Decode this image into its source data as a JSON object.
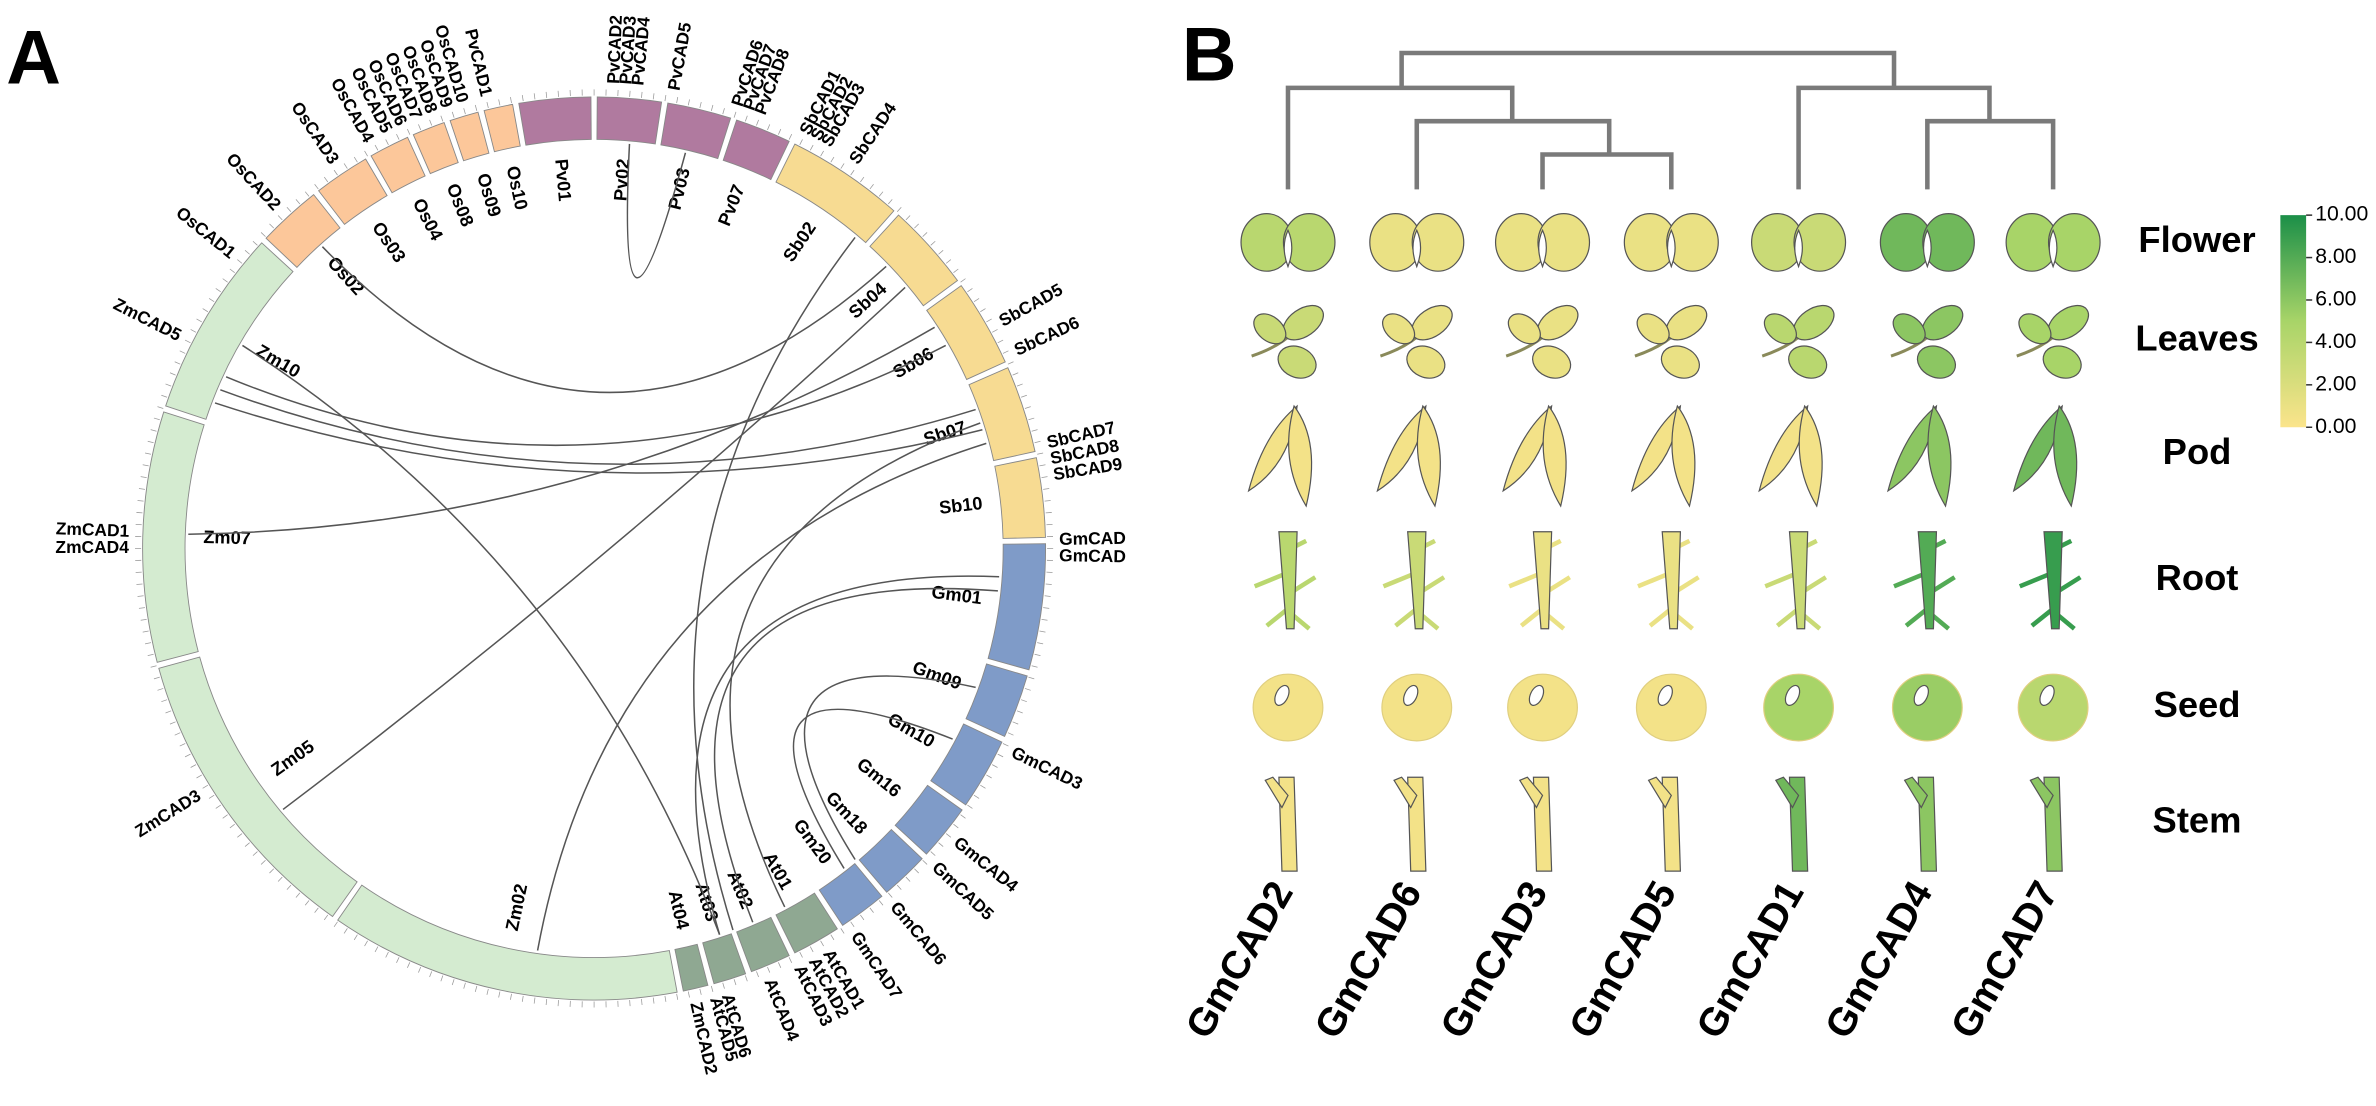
{
  "chart_data": [
    {
      "type": "circos",
      "panel_label": "A",
      "chromosomes": [
        "Pv01",
        "Pv02",
        "Pv03",
        "Pv07",
        "Sb02",
        "Sb04",
        "Sb06",
        "Sb07",
        "Sb10",
        "Gm01",
        "Gm09",
        "Gm10",
        "Gm16",
        "Gm18",
        "Gm20",
        "At01",
        "At02",
        "At03",
        "At04",
        "Zm02",
        "Zm05",
        "Zm07",
        "Zm10",
        "Os02",
        "Os03",
        "Os04",
        "Os08",
        "Os09",
        "Os10"
      ],
      "colors": [
        "#b07a9f",
        "#b07a9f",
        "#b07a9f",
        "#b07a9f",
        "#f7db92",
        "#f7db92",
        "#f7db92",
        "#f7db92",
        "#f7db92",
        "#7f9bc8",
        "#7f9bc8",
        "#7f9bc8",
        "#7f9bc8",
        "#7f9bc8",
        "#7f9bc8",
        "#8fa892",
        "#8fa892",
        "#8fa892",
        "#8fa892",
        "#d4ebd0",
        "#d4ebd0",
        "#d4ebd0",
        "#d4ebd0",
        "#fcc79a",
        "#fcc79a",
        "#fcc79a",
        "#fcc79a",
        "#fcc79a",
        "#fcc79a"
      ],
      "genes": [
        "OsCAD1",
        "OsCAD2",
        "OsCAD3",
        "OsCAD4",
        "OsCAD5",
        "OsCAD6",
        "OsCAD7",
        "OsCAD8",
        "OsCAD9",
        "OsCAD10",
        "PvCAD1",
        "PvCAD2",
        "PvCAD3",
        "PvCAD4",
        "PvCAD5",
        "PvCAD6",
        "PvCAD7",
        "PvCAD8",
        "SbCAD1",
        "SbCAD2",
        "SbCAD3",
        "SbCAD4",
        "SbCAD5",
        "SbCAD6",
        "SbCAD7",
        "SbCAD8",
        "SbCAD9",
        "GmCAD",
        "GmCAD",
        "GmCAD3",
        "GmCAD4",
        "GmCAD5",
        "GmCAD6",
        "GmCAD7",
        "AtCAD1",
        "AtCAD2",
        "AtCAD3",
        "AtCAD4",
        "AtCAD6",
        "AtCAD5",
        "ZmCAD2",
        "ZmCAD3",
        "ZmCAD4",
        "ZmCAD1",
        "ZmCAD5"
      ]
    },
    {
      "type": "heatmap",
      "panel_label": "B",
      "columns": [
        "GmCAD2",
        "GmCAD6",
        "GmCAD3",
        "GmCAD5",
        "GmCAD1",
        "GmCAD4",
        "GmCAD7"
      ],
      "rows": [
        "Flower",
        "Leaves",
        "Pod",
        "Root",
        "Seed",
        "Stem"
      ],
      "values": [
        [
          4,
          1,
          1,
          1,
          3,
          7,
          5
        ],
        [
          3,
          1,
          1,
          1,
          4,
          6,
          5
        ],
        [
          0.5,
          0.5,
          0.5,
          0.5,
          0.5,
          6,
          7
        ],
        [
          4,
          3,
          1,
          1,
          3,
          8,
          9
        ],
        [
          0.5,
          0.5,
          0.5,
          0.5,
          5,
          5.5,
          4
        ],
        [
          0.5,
          0.5,
          0.5,
          0.5,
          7,
          6,
          6
        ]
      ],
      "colorscale": [
        "#fbe48b",
        "#a8d468",
        "#1b8f48"
      ],
      "clim": [
        0,
        10
      ],
      "cticks": [
        {
          "value": 0,
          "label": "0.00"
        },
        {
          "value": 2,
          "label": "2.00"
        },
        {
          "value": 4,
          "label": "4.00"
        },
        {
          "value": 6,
          "label": "6.00"
        },
        {
          "value": 8,
          "label": "8.00"
        },
        {
          "value": 10,
          "label": "10.00"
        }
      ]
    }
  ]
}
